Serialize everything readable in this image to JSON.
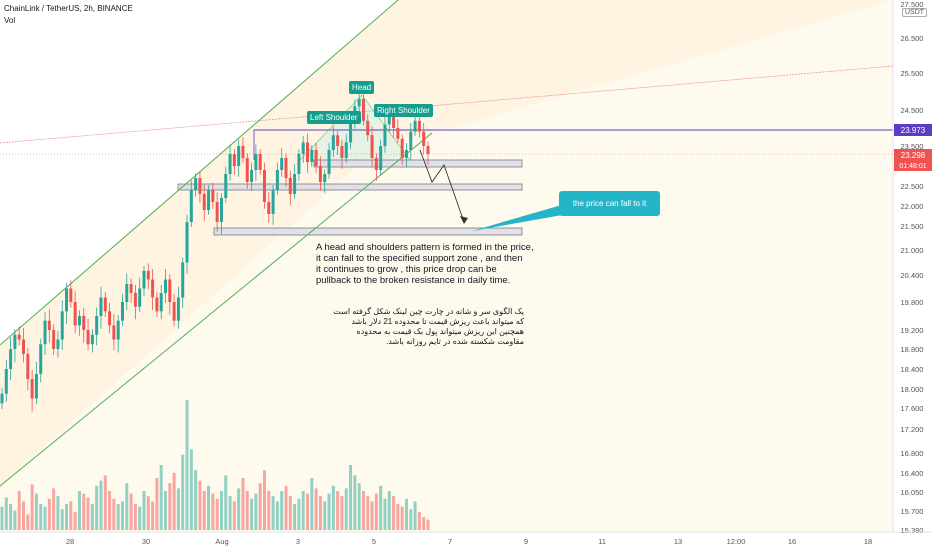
{
  "header": {
    "symbol": "ChainLink / TetherUS, 2h, BINANCE",
    "volume_label": "Vol",
    "currency_badge": "USDT"
  },
  "annotations": {
    "head": "Head",
    "left_shoulder": "Left Shoulder",
    "right_shoulder": "Right Shoulder",
    "callout": "the price can fall to it",
    "note_en": "A head and shoulders pattern is formed in the price,\nit can fall to the specified support zone , and then\nit continues to grow , this price drop can be\npullback to the broken resistance in daily time.",
    "note_fa": "یک الگوی سر و شانه در چارت چین لینک شکل گرفته است\nکه میتواند باعث ریزش قیمت تا محدوده 21 دلار باشد\nهمچنین این ریزش میتواند پول بک قیمت به محدوده\nمقاومت شکسته شده در تایم روزانه باشد."
  },
  "colors": {
    "up": "#26a69a",
    "down": "#ef5350",
    "channel": "#4caf50",
    "resistance_purple": "#5b3cc4",
    "pink_line": "#ef9a9a",
    "callout": "#26b5c8"
  },
  "chart_data": {
    "type": "candlestick",
    "y_axis": {
      "ticks": [
        "26.500",
        "25.500",
        "24.500",
        "23.500",
        "22.500",
        "22.000",
        "21.500",
        "21.000",
        "20.400",
        "19.800",
        "19.200",
        "18.800",
        "18.400",
        "18.000",
        "17.600",
        "17.200",
        "16.800",
        "16.400",
        "16.050",
        "15.700",
        "15.380"
      ],
      "top_partial_tick": "27.500"
    },
    "x_axis": {
      "ticks": [
        "28",
        "30",
        "Aug",
        "3",
        "5",
        "7",
        "9",
        "11",
        "13",
        "12:00",
        "16",
        "18"
      ]
    },
    "price_labels": {
      "resistance": "23.973",
      "last_price": "23.298",
      "countdown": "01:48:01"
    },
    "series": {
      "close": [
        17.9,
        18.4,
        18.8,
        19.1,
        19.0,
        18.7,
        18.2,
        17.8,
        18.3,
        18.9,
        19.4,
        19.2,
        18.8,
        19.0,
        19.6,
        20.1,
        19.8,
        19.3,
        19.5,
        19.2,
        18.9,
        19.1,
        19.5,
        19.9,
        19.6,
        19.3,
        19.0,
        19.4,
        19.8,
        20.2,
        20.0,
        19.7,
        20.1,
        20.5,
        20.3,
        19.9,
        19.6,
        20.0,
        20.3,
        19.8,
        19.4,
        19.9,
        20.7,
        21.6,
        22.4,
        22.7,
        22.3,
        21.9,
        22.4,
        22.1,
        21.6,
        22.2,
        22.8,
        23.3,
        23.0,
        23.5,
        23.2,
        22.6,
        22.9,
        23.3,
        22.9,
        22.1,
        21.8,
        22.4,
        22.9,
        23.2,
        22.7,
        22.3,
        22.8,
        23.3,
        23.6,
        23.1,
        23.4,
        23.0,
        22.6,
        22.8,
        23.4,
        23.8,
        23.5,
        23.2,
        23.6,
        24.2,
        24.6,
        24.8,
        24.2,
        23.8,
        23.2,
        22.9,
        23.5,
        24.1,
        24.4,
        24.0,
        23.7,
        23.2,
        23.4,
        23.9,
        24.2,
        23.9,
        23.5,
        23.3
      ],
      "volume": [
        0.18,
        0.25,
        0.2,
        0.15,
        0.3,
        0.22,
        0.12,
        0.35,
        0.28,
        0.2,
        0.18,
        0.24,
        0.32,
        0.26,
        0.16,
        0.2,
        0.22,
        0.14,
        0.3,
        0.28,
        0.25,
        0.2,
        0.34,
        0.38,
        0.42,
        0.3,
        0.24,
        0.2,
        0.22,
        0.36,
        0.28,
        0.2,
        0.18,
        0.3,
        0.26,
        0.22,
        0.4,
        0.5,
        0.3,
        0.36,
        0.44,
        0.32,
        0.58,
        1.0,
        0.62,
        0.46,
        0.38,
        0.3,
        0.34,
        0.28,
        0.24,
        0.3,
        0.42,
        0.26,
        0.22,
        0.32,
        0.4,
        0.3,
        0.24,
        0.28,
        0.36,
        0.46,
        0.3,
        0.26,
        0.22,
        0.3,
        0.34,
        0.26,
        0.2,
        0.24,
        0.3,
        0.28,
        0.4,
        0.32,
        0.26,
        0.22,
        0.28,
        0.34,
        0.3,
        0.26,
        0.32,
        0.5,
        0.42,
        0.36,
        0.3,
        0.26,
        0.22,
        0.28,
        0.34,
        0.24,
        0.3,
        0.26,
        0.2,
        0.18,
        0.24,
        0.16,
        0.22,
        0.14,
        0.1,
        0.08
      ]
    }
  }
}
